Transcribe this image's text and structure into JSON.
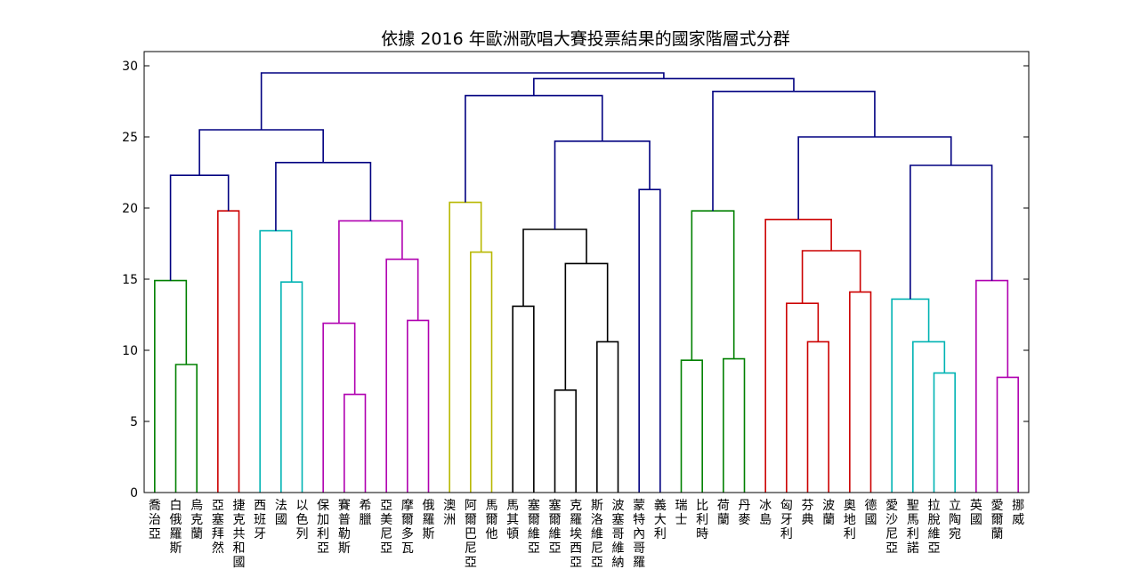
{
  "chart_data": {
    "type": "dendrogram",
    "title": "依據 2016 年歐洲歌唱大賽投票結果的國家階層式分群",
    "ylim": [
      0,
      31
    ],
    "yticks": [
      0,
      5,
      10,
      15,
      20,
      25,
      30
    ],
    "leaves": [
      "喬治亞",
      "白俄羅斯",
      "烏克蘭",
      "亞塞拜然",
      "捷克共和國",
      "西班牙",
      "法國",
      "以色列",
      "保加利亞",
      "賽普勒斯",
      "希臘",
      "亞美尼亞",
      "摩爾多瓦",
      "俄羅斯",
      "澳洲",
      "阿爾巴尼亞",
      "馬爾他",
      "馬其頓",
      "塞爾維亞",
      "塞爾維亞",
      "克羅埃西亞",
      "斯洛維尼亞",
      "波塞哥維納",
      "蒙特內哥羅",
      "義大利",
      "瑞士",
      "比利時",
      "荷蘭",
      "丹麥",
      "冰島",
      "匈牙利",
      "芬典",
      "波蘭",
      "奧地利",
      "德國",
      "愛沙尼亞",
      "聖馬利諾",
      "拉脫維亞",
      "立陶宛",
      "英國",
      "愛爾蘭",
      "挪威"
    ],
    "cluster_colors": {
      "green": "#008000",
      "red": "#cc0000",
      "cyan": "#00b3b3",
      "magenta": "#b000b0",
      "olive": "#b8b800",
      "black": "#000000",
      "navy": "#000080"
    },
    "links": [
      {
        "l": 1,
        "r": 2,
        "h": 9.0,
        "c": "green"
      },
      {
        "l": 0,
        "r": "L0",
        "h": 14.9,
        "c": "green"
      },
      {
        "l": 3,
        "r": 4,
        "h": 19.8,
        "c": "red"
      },
      {
        "l": "L1",
        "r": "L2",
        "h": 22.3,
        "c": "navy"
      },
      {
        "l": 6,
        "r": 7,
        "h": 14.8,
        "c": "cyan"
      },
      {
        "l": 5,
        "r": "L4",
        "h": 18.4,
        "c": "cyan"
      },
      {
        "l": 9,
        "r": 10,
        "h": 6.9,
        "c": "magenta"
      },
      {
        "l": 8,
        "r": "L6",
        "h": 11.9,
        "c": "magenta"
      },
      {
        "l": 12,
        "r": 13,
        "h": 12.1,
        "c": "magenta"
      },
      {
        "l": 11,
        "r": "L8",
        "h": 16.4,
        "c": "magenta"
      },
      {
        "l": "L7",
        "r": "L9",
        "h": 19.1,
        "c": "magenta"
      },
      {
        "l": "L5",
        "r": "L10",
        "h": 23.2,
        "c": "navy"
      },
      {
        "l": "L3",
        "r": "L11",
        "h": 25.5,
        "c": "navy"
      },
      {
        "l": 15,
        "r": 16,
        "h": 16.9,
        "c": "olive"
      },
      {
        "l": 14,
        "r": "L13",
        "h": 20.4,
        "c": "olive"
      },
      {
        "l": 17,
        "r": 18,
        "h": 13.1,
        "c": "black"
      },
      {
        "l": 19,
        "r": 20,
        "h": 7.2,
        "c": "black"
      },
      {
        "l": 21,
        "r": 22,
        "h": 10.6,
        "c": "black"
      },
      {
        "l": "L16",
        "r": "L17",
        "h": 16.1,
        "c": "black"
      },
      {
        "l": "L15",
        "r": "L18",
        "h": 18.5,
        "c": "black"
      },
      {
        "l": 23,
        "r": 24,
        "h": 21.3,
        "c": "navy"
      },
      {
        "l": "L19",
        "r": "L20",
        "h": 24.7,
        "c": "navy"
      },
      {
        "l": "L14",
        "r": "L21",
        "h": 27.9,
        "c": "navy"
      },
      {
        "l": 25,
        "r": 26,
        "h": 9.3,
        "c": "green"
      },
      {
        "l": 27,
        "r": 28,
        "h": 9.4,
        "c": "green"
      },
      {
        "l": "L23",
        "r": "L24",
        "h": 19.8,
        "c": "green"
      },
      {
        "l": 31,
        "r": 32,
        "h": 10.6,
        "c": "red"
      },
      {
        "l": 30,
        "r": "L26",
        "h": 13.3,
        "c": "red"
      },
      {
        "l": 33,
        "r": 34,
        "h": 14.1,
        "c": "red"
      },
      {
        "l": "L27",
        "r": "L28",
        "h": 17.0,
        "c": "red"
      },
      {
        "l": 29,
        "r": "L29",
        "h": 19.2,
        "c": "red"
      },
      {
        "l": 37,
        "r": 38,
        "h": 8.4,
        "c": "cyan"
      },
      {
        "l": 36,
        "r": "L31",
        "h": 10.6,
        "c": "cyan"
      },
      {
        "l": 35,
        "r": "L32",
        "h": 13.6,
        "c": "cyan"
      },
      {
        "l": 40,
        "r": 41,
        "h": 8.1,
        "c": "magenta"
      },
      {
        "l": 39,
        "r": "L34",
        "h": 14.9,
        "c": "magenta"
      },
      {
        "l": "L33",
        "r": "L35",
        "h": 23.0,
        "c": "navy"
      },
      {
        "l": "L30",
        "r": "L36",
        "h": 25.0,
        "c": "navy"
      },
      {
        "l": "L25",
        "r": "L37",
        "h": 28.2,
        "c": "navy"
      },
      {
        "l": "L22",
        "r": "L38",
        "h": 29.1,
        "c": "navy"
      },
      {
        "l": "L12",
        "r": "L39",
        "h": 29.5,
        "c": "navy"
      }
    ]
  }
}
